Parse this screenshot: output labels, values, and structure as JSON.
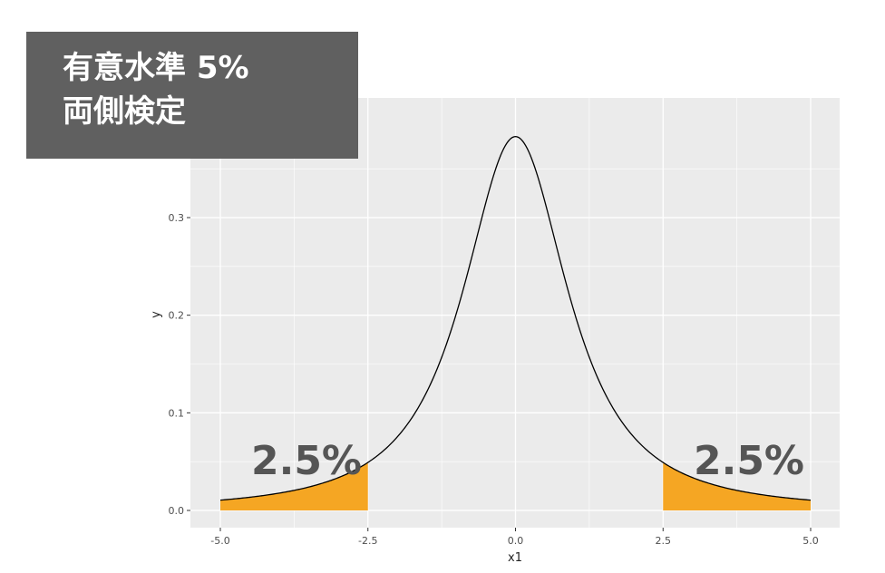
{
  "title_box": {
    "line1": "有意水準 5%",
    "line2": "両側検定"
  },
  "chart_data": {
    "type": "area",
    "distribution": "t",
    "curve_series": "density",
    "xlabel": "x1",
    "ylabel": "y",
    "xlim": [
      -5.0,
      5.0
    ],
    "ylim": [
      0.0,
      0.38
    ],
    "x_ticks": [
      -5.0,
      -2.5,
      0.0,
      2.5,
      5.0
    ],
    "x_tick_labels": [
      "-5.0",
      "-2.5",
      "0.0",
      "2.5",
      "5.0"
    ],
    "y_ticks": [
      0.0,
      0.1,
      0.2,
      0.3
    ],
    "y_tick_labels": [
      "0.0",
      "0.1",
      "0.2",
      "0.3"
    ],
    "peak": {
      "x": 0.0,
      "y": 0.383
    },
    "shaded_regions": [
      {
        "from": -5.0,
        "to": -2.5,
        "label": "2.5%"
      },
      {
        "from": 2.5,
        "to": 5.0,
        "label": "2.5%"
      }
    ],
    "grid": true,
    "background": "#ebebeb",
    "gridline_color": "#ffffff",
    "curve_color": "#000000",
    "fill_color": "#f5a623"
  }
}
